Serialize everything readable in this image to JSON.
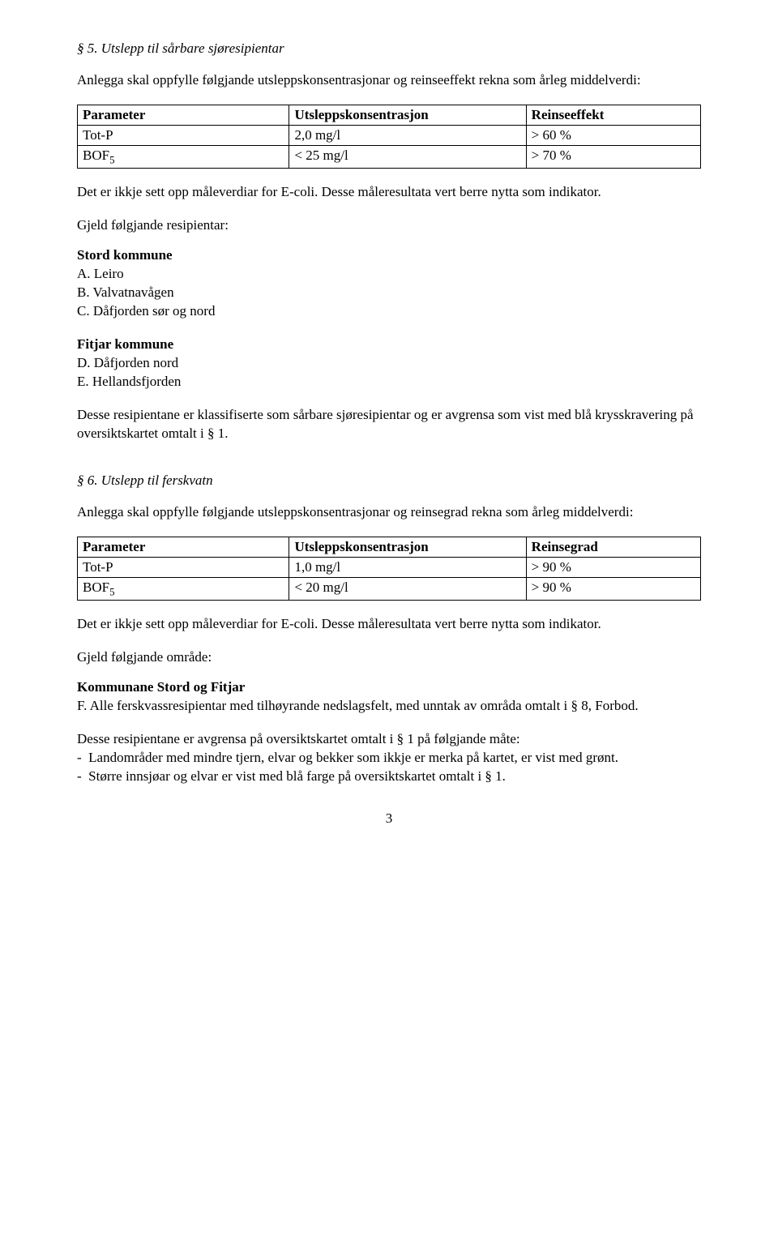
{
  "section5": {
    "heading": "§ 5.  Utslepp til sårbare sjøresipientar",
    "intro": "Anlegga skal oppfylle følgjande utsleppskonsentrasjonar og reinseeffekt rekna som årleg middelverdi:",
    "table": {
      "header": {
        "c1": "Parameter",
        "c2": "Utsleppskonsentrasjon",
        "c3": "Reinseeffekt"
      },
      "rows": [
        {
          "c1": "Tot-P",
          "c2": "2,0 mg/l",
          "c3": "> 60 %"
        },
        {
          "c1_html": "BOF<span class=\"sub\">5</span>",
          "c2": "< 25 mg/l",
          "c3": "> 70 %"
        }
      ]
    },
    "note": "Det er ikkje sett opp måleverdiar for E-coli. Desse måleresultata vert berre nytta som indikator.",
    "gjeld": "Gjeld følgjande resipientar:",
    "groups": [
      {
        "title": "Stord kommune",
        "items": [
          "A.  Leiro",
          "B.  Valvatnavågen",
          "C.  Dåfjorden sør og nord"
        ]
      },
      {
        "title": "Fitjar kommune",
        "items": [
          "D.  Dåfjorden nord",
          "E.  Hellandsfjorden"
        ]
      }
    ],
    "closing": "Desse resipientane er klassifiserte som sårbare sjøresipientar og er avgrensa som vist med blå krysskravering på oversiktskartet omtalt i § 1."
  },
  "section6": {
    "heading": "§ 6.  Utslepp til ferskvatn",
    "intro": "Anlegga skal oppfylle følgjande utsleppskonsentrasjonar og reinsegrad rekna som årleg middelverdi:",
    "table": {
      "header": {
        "c1": "Parameter",
        "c2": "Utsleppskonsentrasjon",
        "c3": "Reinsegrad"
      },
      "rows": [
        {
          "c1": "Tot-P",
          "c2": "1,0 mg/l",
          "c3": "> 90 %"
        },
        {
          "c1_html": "BOF<span class=\"sub\">5</span>",
          "c2": "< 20 mg/l",
          "c3": "> 90 %"
        }
      ]
    },
    "note": "Det er ikkje sett opp måleverdiar for E-coli. Desse måleresultata vert berre nytta som indikator.",
    "gjeld": "Gjeld følgjande område:",
    "group_title": "Kommunane Stord og Fitjar",
    "item_f": "F.  Alle ferskvassresipientar med tilhøyrande nedslagsfelt, med unntak av områda omtalt i § 8, Forbod.",
    "closing_intro": "Desse resipientane er avgrensa på oversiktskartet omtalt i § 1 på følgjande måte:",
    "bullets": [
      "Landområder med mindre tjern, elvar og bekker som ikkje er merka på kartet, er vist med grønt.",
      "Større innsjøar og elvar er vist med blå farge på oversiktskartet omtalt i § 1."
    ]
  },
  "page_number": "3"
}
